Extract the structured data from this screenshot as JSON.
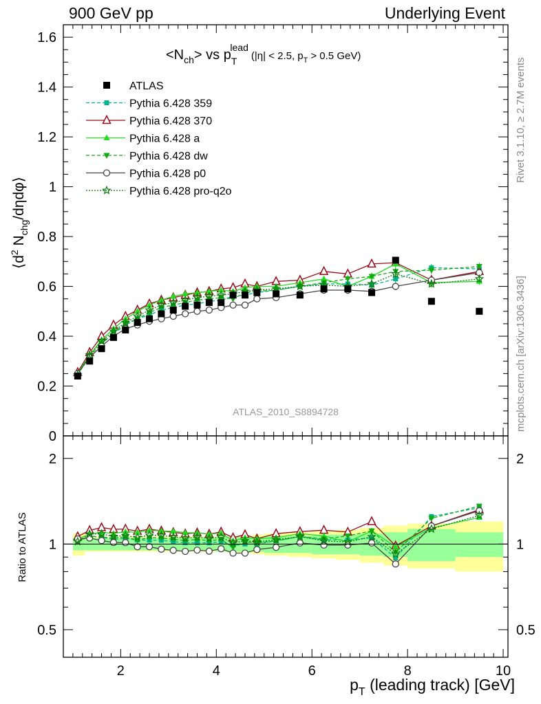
{
  "header": {
    "left": "900 GeV pp",
    "right": "Underlying Event"
  },
  "side_labels": {
    "rivet": "Rivet 3.1.10, ≥ 2.7M events",
    "mcplots": "mcplots.cern.ch [arXiv:1306.3436]"
  },
  "chart_data": {
    "type": "scatter",
    "title_main": "<N",
    "title_sub1": "ch",
    "title_mid": "> vs p",
    "title_sup": "lead",
    "title_sub2": "T",
    "title_cut": "(|η| < 2.5, p",
    "title_cut_sub": "T",
    "title_cut_end": "> 0.5 GeV)",
    "ylabel_main": "⟨d",
    "ylabel_sup": "2",
    "ylabel_mid": " N",
    "ylabel_sub": "chg",
    "ylabel_end": "/dηdφ⟩",
    "xlabel_main": "p",
    "xlabel_sub": "T",
    "xlabel_end": " (leading track) [GeV]",
    "ratio_ylabel": "Ratio to ATLAS",
    "analysis_id": "ATLAS_2010_S8894728",
    "xlim": [
      0.8,
      10.1
    ],
    "ylim": [
      0,
      1.65
    ],
    "ratio_ylim": [
      0.4,
      2.4
    ],
    "x_ticks": [
      "2",
      "4",
      "6",
      "8",
      "10"
    ],
    "x_tick_values": [
      2,
      4,
      6,
      8,
      10
    ],
    "y_ticks": [
      "0",
      "0.2",
      "0.4",
      "0.6",
      "0.8",
      "1",
      "1.2",
      "1.4",
      "1.6"
    ],
    "y_tick_values": [
      0,
      0.2,
      0.4,
      0.6,
      0.8,
      1,
      1.2,
      1.4,
      1.6
    ],
    "ratio_ticks": [
      "0.5",
      "1",
      "2"
    ],
    "ratio_tick_values": [
      0.5,
      1,
      2
    ],
    "x": [
      1.1,
      1.35,
      1.6,
      1.85,
      2.1,
      2.35,
      2.6,
      2.85,
      3.1,
      3.35,
      3.6,
      3.85,
      4.1,
      4.35,
      4.6,
      4.85,
      5.25,
      5.75,
      6.25,
      6.75,
      7.25,
      7.75,
      8.5,
      9.5
    ],
    "x_edges": [
      1.0,
      1.25,
      1.5,
      1.75,
      2.0,
      2.25,
      2.5,
      2.75,
      3.0,
      3.25,
      3.5,
      3.75,
      4.0,
      4.25,
      4.5,
      4.75,
      5.0,
      5.5,
      6.0,
      6.5,
      7.0,
      7.5,
      8.0,
      9.0,
      10.0
    ],
    "data": {
      "name": "ATLAS",
      "color": "#000000",
      "values": [
        0.24,
        0.3,
        0.35,
        0.395,
        0.425,
        0.455,
        0.47,
        0.49,
        0.505,
        0.52,
        0.525,
        0.535,
        0.535,
        0.565,
        0.565,
        0.575,
        0.57,
        0.565,
        0.59,
        0.59,
        0.575,
        0.705,
        0.54,
        0.5
      ],
      "band_stat": [
        0.05,
        0.05,
        0.05,
        0.05,
        0.05,
        0.05,
        0.05,
        0.05,
        0.05,
        0.05,
        0.05,
        0.05,
        0.06,
        0.06,
        0.06,
        0.06,
        0.07,
        0.07,
        0.08,
        0.08,
        0.09,
        0.1,
        0.13,
        0.1
      ],
      "band_tot": [
        0.09,
        0.06,
        0.06,
        0.06,
        0.06,
        0.06,
        0.06,
        0.06,
        0.06,
        0.06,
        0.06,
        0.06,
        0.06,
        0.07,
        0.07,
        0.08,
        0.09,
        0.1,
        0.11,
        0.12,
        0.14,
        0.16,
        0.18,
        0.2
      ]
    },
    "series": [
      {
        "name": "Pythia 6.428 359",
        "color": "#00b38f",
        "dash": "5,3",
        "marker": "square",
        "values": [
          0.245,
          0.32,
          0.37,
          0.41,
          0.445,
          0.47,
          0.485,
          0.505,
          0.515,
          0.525,
          0.53,
          0.54,
          0.545,
          0.56,
          0.565,
          0.575,
          0.585,
          0.6,
          0.61,
          0.61,
          0.605,
          0.63,
          0.675,
          0.67
        ]
      },
      {
        "name": "Pythia 6.428 370",
        "color": "#9a0a1a",
        "dash": "",
        "marker": "triangle-open",
        "values": [
          0.255,
          0.335,
          0.4,
          0.445,
          0.48,
          0.505,
          0.53,
          0.545,
          0.555,
          0.565,
          0.575,
          0.58,
          0.59,
          0.595,
          0.61,
          0.6,
          0.62,
          0.625,
          0.66,
          0.65,
          0.69,
          0.695,
          0.625,
          0.66
        ]
      },
      {
        "name": "Pythia 6.428 a",
        "color": "#22dd22",
        "dash": "",
        "marker": "triangle",
        "values": [
          0.25,
          0.325,
          0.385,
          0.43,
          0.47,
          0.5,
          0.525,
          0.545,
          0.56,
          0.57,
          0.575,
          0.58,
          0.585,
          0.58,
          0.595,
          0.6,
          0.6,
          0.615,
          0.63,
          0.6,
          0.64,
          0.69,
          0.615,
          0.62
        ]
      },
      {
        "name": "Pythia 6.428 dw",
        "color": "#11aa11",
        "dash": "5,3",
        "marker": "triangle-down",
        "values": [
          0.245,
          0.32,
          0.37,
          0.415,
          0.45,
          0.47,
          0.495,
          0.515,
          0.525,
          0.535,
          0.545,
          0.55,
          0.555,
          0.55,
          0.575,
          0.58,
          0.585,
          0.6,
          0.615,
          0.63,
          0.64,
          0.66,
          0.665,
          0.68
        ]
      },
      {
        "name": "Pythia 6.428 p0",
        "color": "#444444",
        "dash": "",
        "marker": "circle-open",
        "values": [
          0.25,
          0.315,
          0.36,
          0.4,
          0.43,
          0.445,
          0.46,
          0.47,
          0.48,
          0.49,
          0.5,
          0.505,
          0.515,
          0.525,
          0.525,
          0.55,
          0.555,
          0.57,
          0.585,
          0.585,
          0.58,
          0.6,
          0.625,
          0.655
        ]
      },
      {
        "name": "Pythia 6.428 pro-q2o",
        "color": "#0a7a0a",
        "dash": "2,2",
        "marker": "star",
        "values": [
          0.245,
          0.325,
          0.38,
          0.42,
          0.455,
          0.48,
          0.505,
          0.525,
          0.535,
          0.545,
          0.555,
          0.56,
          0.565,
          0.57,
          0.58,
          0.585,
          0.59,
          0.6,
          0.605,
          0.6,
          0.61,
          0.65,
          0.61,
          0.63
        ]
      }
    ]
  }
}
